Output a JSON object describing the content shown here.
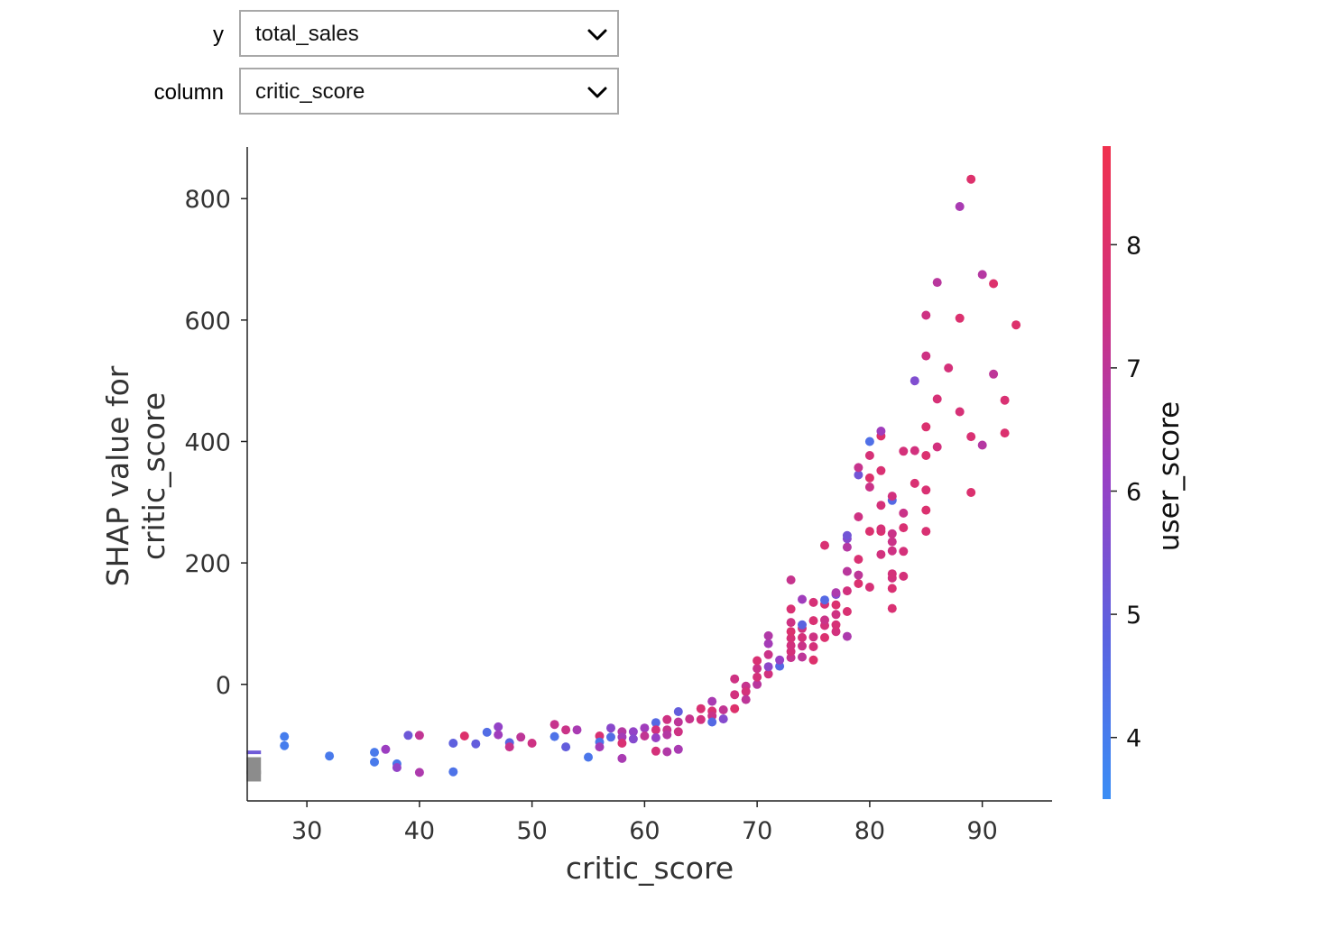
{
  "controls": {
    "y": {
      "label": "y",
      "value": "total_sales"
    },
    "column": {
      "label": "column",
      "value": "critic_score"
    }
  },
  "chart_data": {
    "type": "scatter",
    "title": "",
    "xlabel": "critic_score",
    "ylabel_line1": "SHAP value for",
    "ylabel_line2": "critic_score",
    "xlim": [
      24.7,
      96.2
    ],
    "ylim": [
      -192,
      885
    ],
    "xticks": [
      30,
      40,
      50,
      60,
      70,
      80,
      90
    ],
    "yticks": [
      0,
      200,
      400,
      600,
      800
    ],
    "colorbar": {
      "label": "user_score",
      "range": [
        3.5,
        8.8
      ],
      "ticks": [
        4,
        5,
        6,
        7,
        8
      ],
      "colors": [
        "#3a8df5",
        "#5b62e0",
        "#9a3fc4",
        "#d1317f",
        "#f0314e"
      ]
    },
    "missing_marker": {
      "x": 25.6,
      "ybar": [
        -160,
        -120
      ],
      "strokes": [
        -112,
        -145
      ]
    },
    "points": [
      [
        28,
        -86,
        4.0
      ],
      [
        28,
        -101,
        4.0
      ],
      [
        32,
        -118,
        4.1
      ],
      [
        36,
        -112,
        4.1
      ],
      [
        36,
        -128,
        4.1
      ],
      [
        37,
        -107,
        6.2
      ],
      [
        38,
        -131,
        4.2
      ],
      [
        38,
        -137,
        6.0
      ],
      [
        39,
        -84,
        5.2
      ],
      [
        40,
        -84,
        7.1
      ],
      [
        40,
        -145,
        6.6
      ],
      [
        43,
        -97,
        4.9
      ],
      [
        43,
        -144,
        4.3
      ],
      [
        44,
        -85,
        8.0
      ],
      [
        45,
        -98,
        5.0
      ],
      [
        46,
        -79,
        4.5
      ],
      [
        47,
        -70,
        6.0
      ],
      [
        47,
        -83,
        6.3
      ],
      [
        48,
        -96,
        4.8
      ],
      [
        48,
        -103,
        7.2
      ],
      [
        49,
        -87,
        7.0
      ],
      [
        50,
        -97,
        7.4
      ],
      [
        52,
        -66,
        7.2
      ],
      [
        52,
        -86,
        4.3
      ],
      [
        53,
        -75,
        7.3
      ],
      [
        53,
        -103,
        5.0
      ],
      [
        54,
        -75,
        6.5
      ],
      [
        55,
        -120,
        4.2
      ],
      [
        56,
        -85,
        7.8
      ],
      [
        56,
        -95,
        4.3
      ],
      [
        56,
        -103,
        6.4
      ],
      [
        57,
        -72,
        5.8
      ],
      [
        57,
        -87,
        4.5
      ],
      [
        58,
        -78,
        6.8
      ],
      [
        58,
        -87,
        6.4
      ],
      [
        58,
        -97,
        7.8
      ],
      [
        58,
        -122,
        6.5
      ],
      [
        59,
        -78,
        6.0
      ],
      [
        59,
        -90,
        5.7
      ],
      [
        60,
        -72,
        6.3
      ],
      [
        60,
        -85,
        7.1
      ],
      [
        61,
        -63,
        4.6
      ],
      [
        61,
        -75,
        7.5
      ],
      [
        61,
        -88,
        6.1
      ],
      [
        61,
        -110,
        7.6
      ],
      [
        62,
        -58,
        7.4
      ],
      [
        62,
        -75,
        7.2
      ],
      [
        62,
        -83,
        6.8
      ],
      [
        62,
        -111,
        6.7
      ],
      [
        63,
        -45,
        5.0
      ],
      [
        63,
        -62,
        7.0
      ],
      [
        63,
        -78,
        7.4
      ],
      [
        63,
        -107,
        6.5
      ],
      [
        64,
        -57,
        7.2
      ],
      [
        65,
        -40,
        7.8
      ],
      [
        65,
        -58,
        7.5
      ],
      [
        66,
        -28,
        6.5
      ],
      [
        66,
        -44,
        7.8
      ],
      [
        66,
        -52,
        7.3
      ],
      [
        66,
        -62,
        4.6
      ],
      [
        67,
        -42,
        7.1
      ],
      [
        67,
        -57,
        5.7
      ],
      [
        68,
        -17,
        7.5
      ],
      [
        68,
        -40,
        8.0
      ],
      [
        68,
        9,
        7.4
      ],
      [
        69,
        -3,
        7.2
      ],
      [
        69,
        -12,
        7.6
      ],
      [
        69,
        -25,
        7.0
      ],
      [
        70,
        0,
        6.9
      ],
      [
        70,
        12,
        7.6
      ],
      [
        70,
        26,
        7.3
      ],
      [
        70,
        39,
        7.8
      ],
      [
        71,
        17,
        7.5
      ],
      [
        71,
        29,
        5.9
      ],
      [
        71,
        49,
        7.3
      ],
      [
        71,
        67,
        6.4
      ],
      [
        71,
        80,
        6.7
      ],
      [
        72,
        30,
        4.6
      ],
      [
        72,
        40,
        6.1
      ],
      [
        73,
        44,
        7.2
      ],
      [
        73,
        54,
        7.6
      ],
      [
        73,
        64,
        7.5
      ],
      [
        73,
        76,
        7.7
      ],
      [
        73,
        87,
        7.9
      ],
      [
        73,
        102,
        7.4
      ],
      [
        73,
        124,
        7.8
      ],
      [
        73,
        172,
        7.2
      ],
      [
        74,
        45,
        7.0
      ],
      [
        74,
        63,
        7.3
      ],
      [
        74,
        77,
        7.6
      ],
      [
        74,
        92,
        7.5
      ],
      [
        74,
        98,
        4.8
      ],
      [
        74,
        140,
        6.3
      ],
      [
        75,
        40,
        8.0
      ],
      [
        75,
        62,
        7.6
      ],
      [
        75,
        78,
        7.4
      ],
      [
        75,
        105,
        7.8
      ],
      [
        75,
        135,
        7.7
      ],
      [
        76,
        77,
        7.9
      ],
      [
        76,
        97,
        7.6
      ],
      [
        76,
        106,
        7.3
      ],
      [
        76,
        132,
        7.8
      ],
      [
        76,
        139,
        4.6
      ],
      [
        76,
        229,
        7.8
      ],
      [
        77,
        87,
        7.5
      ],
      [
        77,
        98,
        7.7
      ],
      [
        77,
        115,
        7.4
      ],
      [
        77,
        131,
        7.9
      ],
      [
        77,
        148,
        5.6
      ],
      [
        77,
        151,
        6.6
      ],
      [
        78,
        79,
        6.6
      ],
      [
        78,
        120,
        7.8
      ],
      [
        78,
        154,
        7.5
      ],
      [
        78,
        186,
        6.9
      ],
      [
        78,
        226,
        6.8
      ],
      [
        78,
        240,
        5.8
      ],
      [
        78,
        245,
        5.3
      ],
      [
        79,
        166,
        7.9
      ],
      [
        79,
        180,
        7.0
      ],
      [
        79,
        206,
        7.8
      ],
      [
        79,
        276,
        7.4
      ],
      [
        79,
        345,
        5.3
      ],
      [
        79,
        357,
        7.2
      ],
      [
        80,
        160,
        7.7
      ],
      [
        80,
        252,
        7.9
      ],
      [
        80,
        325,
        7.3
      ],
      [
        80,
        340,
        8.0
      ],
      [
        80,
        377,
        7.7
      ],
      [
        80,
        400,
        4.4
      ],
      [
        81,
        214,
        7.5
      ],
      [
        81,
        252,
        7.9
      ],
      [
        81,
        256,
        7.7
      ],
      [
        81,
        295,
        7.6
      ],
      [
        81,
        352,
        7.8
      ],
      [
        81,
        409,
        8.0
      ],
      [
        81,
        417,
        6.3
      ],
      [
        82,
        125,
        7.8
      ],
      [
        82,
        158,
        7.8
      ],
      [
        82,
        175,
        7.5
      ],
      [
        82,
        182,
        7.6
      ],
      [
        82,
        220,
        7.4
      ],
      [
        82,
        235,
        7.3
      ],
      [
        82,
        248,
        7.3
      ],
      [
        82,
        303,
        4.6
      ],
      [
        82,
        310,
        7.5
      ],
      [
        83,
        178,
        7.6
      ],
      [
        83,
        219,
        7.6
      ],
      [
        83,
        258,
        7.8
      ],
      [
        83,
        282,
        7.3
      ],
      [
        83,
        384,
        7.6
      ],
      [
        84,
        331,
        7.8
      ],
      [
        84,
        385,
        7.5
      ],
      [
        84,
        500,
        5.6
      ],
      [
        85,
        252,
        7.8
      ],
      [
        85,
        287,
        7.9
      ],
      [
        85,
        320,
        7.8
      ],
      [
        85,
        377,
        7.9
      ],
      [
        85,
        424,
        7.9
      ],
      [
        85,
        541,
        7.4
      ],
      [
        85,
        608,
        7.4
      ],
      [
        86,
        391,
        7.5
      ],
      [
        86,
        470,
        7.7
      ],
      [
        86,
        662,
        6.9
      ],
      [
        87,
        521,
        7.6
      ],
      [
        88,
        449,
        7.7
      ],
      [
        88,
        603,
        7.9
      ],
      [
        88,
        787,
        6.5
      ],
      [
        89,
        316,
        7.9
      ],
      [
        89,
        408,
        7.8
      ],
      [
        89,
        832,
        8.0
      ],
      [
        90,
        394,
        6.8
      ],
      [
        90,
        675,
        6.8
      ],
      [
        91,
        511,
        7.0
      ],
      [
        91,
        660,
        8.0
      ],
      [
        92,
        414,
        7.9
      ],
      [
        92,
        468,
        7.8
      ],
      [
        93,
        592,
        8.0
      ]
    ]
  }
}
